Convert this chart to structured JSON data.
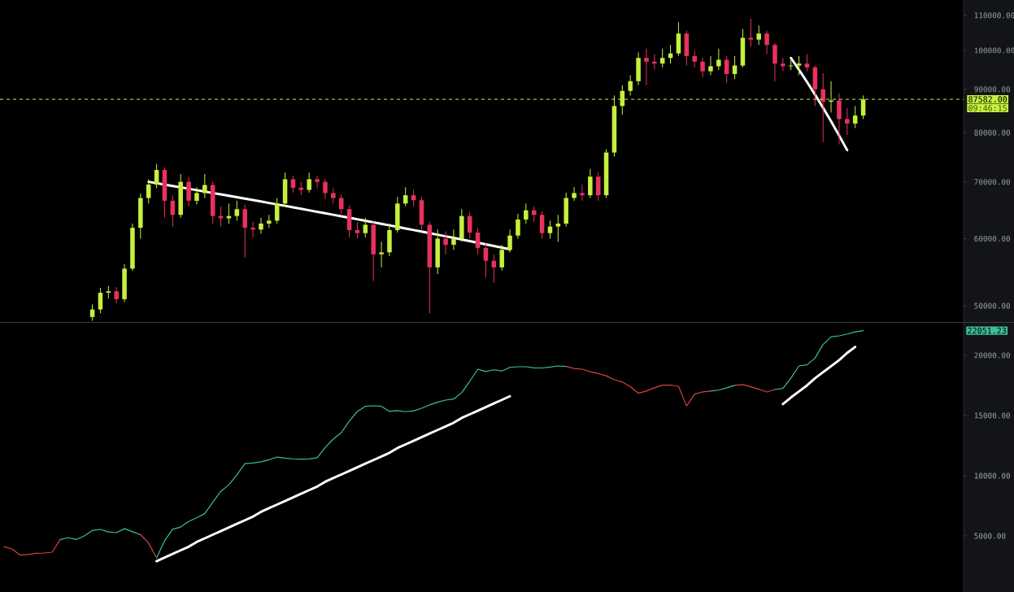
{
  "chart_data": [
    {
      "type": "candlestick",
      "log": "y",
      "tick_labels": "y",
      "categories": [
        null,
        null,
        null,
        null,
        null,
        null,
        null,
        null,
        null,
        null,
        null,
        null,
        null,
        null,
        null,
        null,
        null,
        null,
        null,
        null,
        null,
        null,
        null,
        null,
        null,
        null,
        null,
        null,
        null,
        null,
        null,
        null,
        null,
        null,
        null,
        null,
        null,
        null,
        null,
        null,
        null,
        null,
        null,
        null,
        null,
        null,
        null,
        null,
        null,
        null,
        null,
        null,
        null,
        null,
        null,
        null,
        null,
        null,
        null,
        null,
        null,
        null,
        null,
        null,
        null,
        null,
        null,
        null,
        null,
        null,
        null,
        null,
        null,
        null,
        null,
        null,
        null,
        null,
        null,
        null,
        null,
        null,
        null,
        null,
        null,
        null,
        null,
        null,
        null,
        null,
        null,
        null,
        null,
        null,
        null,
        null,
        null,
        null,
        null,
        null,
        null,
        null,
        null,
        null,
        null,
        null,
        null,
        null,
        null,
        null,
        null,
        null,
        null,
        null,
        null,
        null,
        null,
        null,
        null,
        null
      ],
      "ohlc": [
        null,
        null,
        null,
        null,
        null,
        null,
        null,
        null,
        null,
        null,
        null,
        [
          48500,
          50200,
          48000,
          49500
        ],
        [
          49500,
          52500,
          49000,
          51800
        ],
        [
          51800,
          52800,
          51000,
          52000
        ],
        [
          52000,
          52600,
          50300,
          50900
        ],
        [
          50900,
          56000,
          50500,
          55300
        ],
        [
          55300,
          62500,
          55000,
          61800
        ],
        [
          61800,
          67800,
          60000,
          67000
        ],
        [
          67000,
          70500,
          66000,
          69500
        ],
        [
          69500,
          73500,
          68800,
          72300
        ],
        [
          72300,
          72800,
          63500,
          66500
        ],
        [
          66500,
          67500,
          62000,
          64000
        ],
        [
          64000,
          71500,
          63500,
          70000
        ],
        [
          70000,
          71000,
          65500,
          66500
        ],
        [
          66500,
          69000,
          65800,
          67900
        ],
        [
          67900,
          71500,
          67000,
          69400
        ],
        [
          69400,
          70000,
          62500,
          63800
        ],
        [
          63800,
          65500,
          62000,
          63400
        ],
        [
          63400,
          66000,
          62500,
          63800
        ],
        [
          63800,
          66500,
          63000,
          65000
        ],
        [
          65000,
          65800,
          57000,
          61800
        ],
        [
          61800,
          62800,
          60200,
          61500
        ],
        [
          61500,
          63500,
          60800,
          62500
        ],
        [
          62500,
          64000,
          61800,
          63000
        ],
        [
          63000,
          67000,
          62500,
          66000
        ],
        [
          66000,
          71800,
          65500,
          70500
        ],
        [
          70500,
          71200,
          68000,
          68900
        ],
        [
          68900,
          70000,
          67500,
          68500
        ],
        [
          68500,
          71800,
          68000,
          70500
        ],
        [
          70500,
          71200,
          68800,
          70000
        ],
        [
          70000,
          70600,
          66800,
          67900
        ],
        [
          67900,
          68800,
          66000,
          67000
        ],
        [
          67000,
          67600,
          64200,
          65000
        ],
        [
          65000,
          65600,
          60200,
          61400
        ],
        [
          61400,
          62800,
          60000,
          60900
        ],
        [
          60900,
          63500,
          60200,
          62300
        ],
        [
          62300,
          62800,
          53500,
          57500
        ],
        [
          57500,
          59500,
          55500,
          57800
        ],
        [
          57800,
          62500,
          57200,
          61400
        ],
        [
          61400,
          67200,
          61000,
          66000
        ],
        [
          66000,
          69000,
          65500,
          67500
        ],
        [
          67500,
          68500,
          65500,
          66600
        ],
        [
          66600,
          67200,
          61500,
          62300
        ],
        [
          62300,
          62800,
          49000,
          55500
        ],
        [
          55500,
          61500,
          54500,
          60000
        ],
        [
          60000,
          61200,
          57500,
          59000
        ],
        [
          59000,
          61500,
          58200,
          60000
        ],
        [
          60000,
          65000,
          59500,
          63800
        ],
        [
          63800,
          64500,
          60000,
          61000
        ],
        [
          61000,
          61800,
          57500,
          58500
        ],
        [
          58500,
          59200,
          54000,
          56500
        ],
        [
          56500,
          57500,
          53200,
          55500
        ],
        [
          55500,
          59000,
          55000,
          58200
        ],
        [
          58200,
          61500,
          57800,
          60500
        ],
        [
          60500,
          64200,
          60000,
          63200
        ],
        [
          63200,
          66000,
          62500,
          64800
        ],
        [
          64800,
          65500,
          62800,
          64000
        ],
        [
          64000,
          64600,
          60000,
          60900
        ],
        [
          60900,
          63000,
          60000,
          62000
        ],
        [
          62000,
          64000,
          59500,
          62500
        ],
        [
          62500,
          68000,
          62000,
          67000
        ],
        [
          67000,
          69000,
          66500,
          67900
        ],
        [
          67900,
          69500,
          66500,
          67500
        ],
        [
          67500,
          72500,
          67000,
          71000
        ],
        [
          71000,
          71800,
          66500,
          67500
        ],
        [
          67500,
          76500,
          67000,
          75800
        ],
        [
          75800,
          88500,
          75000,
          86000
        ],
        [
          86000,
          91000,
          84000,
          89600
        ],
        [
          89600,
          93500,
          88500,
          92000
        ],
        [
          92000,
          99500,
          91000,
          98000
        ],
        [
          98000,
          100500,
          91000,
          97000
        ],
        [
          97000,
          99000,
          95000,
          96500
        ],
        [
          96500,
          100500,
          95500,
          98000
        ],
        [
          98000,
          101500,
          96500,
          99200
        ],
        [
          99200,
          108000,
          98500,
          104700
        ],
        [
          104700,
          105500,
          96000,
          98500
        ],
        [
          98500,
          100000,
          95500,
          97000
        ],
        [
          97000,
          98000,
          93000,
          94500
        ],
        [
          94500,
          98500,
          93500,
          95800
        ],
        [
          95800,
          100500,
          94800,
          97500
        ],
        [
          97500,
          98500,
          91500,
          93800
        ],
        [
          93800,
          98500,
          92500,
          96000
        ],
        [
          96000,
          106000,
          95500,
          103500
        ],
        [
          103500,
          109000,
          101000,
          103000
        ],
        [
          103000,
          107000,
          101500,
          104700
        ],
        [
          104700,
          105500,
          99000,
          101500
        ],
        [
          101500,
          102000,
          92000,
          96500
        ],
        [
          96500,
          98000,
          94500,
          95800
        ],
        [
          95800,
          97500,
          94800,
          96000
        ],
        [
          96000,
          98500,
          93500,
          96500
        ],
        [
          96500,
          99000,
          94500,
          95500
        ],
        [
          95500,
          96000,
          86000,
          90000
        ],
        [
          90000,
          94000,
          78000,
          87000
        ],
        [
          87000,
          92000,
          84500,
          87300
        ],
        [
          87300,
          89000,
          77500,
          83000
        ],
        [
          83000,
          85500,
          79500,
          82000
        ],
        [
          82000,
          86000,
          81000,
          83800
        ],
        [
          83800,
          88500,
          83000,
          87582
        ],
        null,
        null,
        null,
        null,
        null,
        null,
        null,
        null,
        null,
        null,
        null,
        null
      ],
      "colors": [
        null,
        null,
        null,
        null,
        null,
        null,
        null,
        null,
        null,
        null,
        null,
        "#c5f03e",
        "#c5f03e",
        "#c5f03e",
        "#e8315b",
        "#c5f03e",
        "#c5f03e",
        "#c5f03e",
        "#c5f03e",
        "#c5f03e",
        "#e8315b",
        "#e8315b",
        "#c5f03e",
        "#e8315b",
        "#c5f03e",
        "#c5f03e",
        "#e8315b",
        "#e8315b",
        "#c5f03e",
        "#c5f03e",
        "#e8315b",
        "#e8315b",
        "#c5f03e",
        "#c5f03e",
        "#c5f03e",
        "#c5f03e",
        "#e8315b",
        "#e8315b",
        "#c5f03e",
        "#e8315b",
        "#e8315b",
        "#e8315b",
        "#e8315b",
        "#e8315b",
        "#e8315b",
        "#c5f03e",
        "#e8315b",
        "#c5f03e",
        "#c5f03e",
        "#c5f03e",
        "#c5f03e",
        "#e8315b",
        "#e8315b",
        "#e8315b",
        "#c5f03e",
        "#e8315b",
        "#c5f03e",
        "#c5f03e",
        "#e8315b",
        "#e8315b",
        "#e8315b",
        "#e8315b",
        "#c5f03e",
        "#c5f03e",
        "#c5f03e",
        "#c5f03e",
        "#e8315b",
        "#e8315b",
        "#c5f03e",
        "#c5f03e",
        "#c5f03e",
        "#c5f03e",
        "#e8315b",
        "#c5f03e",
        "#e8315b",
        "#c5f03e",
        "#c5f03e",
        "#c5f03e",
        "#c5f03e",
        "#c5f03e",
        "#e8315b",
        "#e8315b",
        "#c5f03e",
        "#c5f03e",
        "#c5f03e",
        "#e8315b",
        "#e8315b",
        "#e8315b",
        "#c5f03e",
        "#c5f03e",
        "#e8315b",
        "#c5f03e",
        "#c5f03e",
        "#e8315b",
        "#c5f03e",
        "#e8315b",
        "#e8315b",
        "#e8315b",
        "#c5f03e",
        "#c5f03e",
        "#e8315b",
        "#e8315b",
        "#e8315b",
        "#c5f03e",
        "#e8315b",
        "#e8315b",
        "#c5f03e",
        "#c5f03e",
        null,
        null,
        null,
        null,
        null,
        null,
        null,
        null,
        null,
        null,
        null,
        null
      ],
      "ylim": [
        47850,
        114700
      ],
      "yticks": [
        {
          "value": 50000,
          "label": "50000.00"
        },
        {
          "value": 60000,
          "label": "60000.00"
        },
        {
          "value": 70000,
          "label": "70000.00"
        },
        {
          "value": 80000,
          "label": "80000.00"
        },
        {
          "value": 90000,
          "label": "90000.00"
        },
        {
          "value": 100000,
          "label": "100000.00"
        },
        {
          "value": 110000,
          "label": "110000.00"
        }
      ],
      "ref_lines": [
        {
          "axis": "y",
          "value": 87582,
          "label": "87582.00",
          "color": "#c5f03e",
          "line_style": "dashed"
        }
      ],
      "annotations": [
        "09:46:15"
      ],
      "series": [
        {
          "type": "line",
          "color": "#ffffff",
          "values": [
            null,
            null,
            null,
            null,
            null,
            null,
            null,
            null,
            null,
            null,
            null,
            null,
            null,
            null,
            null,
            null,
            null,
            null,
            70000,
            69740,
            69480,
            69220,
            68960,
            68700,
            68440,
            68180,
            67920,
            67660,
            67400,
            67140,
            66880,
            66620,
            66360,
            66100,
            65840,
            65580,
            65320,
            65060,
            64800,
            64540,
            64280,
            64020,
            63760,
            63500,
            63240,
            62980,
            62720,
            62460,
            62200,
            61940,
            61680,
            61420,
            61160,
            60900,
            60640,
            60380,
            60120,
            59860,
            59600,
            59340,
            59080,
            58820,
            58560,
            58300,
            null,
            null,
            null,
            null,
            null,
            null,
            null,
            null,
            null,
            null,
            null,
            null,
            null,
            null,
            null,
            null,
            null,
            null,
            null,
            null,
            null,
            null,
            null,
            null,
            null,
            null,
            null,
            null,
            null,
            null,
            null,
            null,
            null,
            null,
            null,
            null,
            null,
            null,
            null,
            null,
            null,
            null,
            null,
            null,
            null,
            null,
            null,
            null,
            null,
            null,
            null,
            null,
            null,
            null,
            null,
            null
          ]
        },
        {
          "type": "line",
          "color": "#ffffff",
          "values": [
            null,
            null,
            null,
            null,
            null,
            null,
            null,
            null,
            null,
            null,
            null,
            null,
            null,
            null,
            null,
            null,
            null,
            null,
            null,
            null,
            null,
            null,
            null,
            null,
            null,
            null,
            null,
            null,
            null,
            null,
            null,
            null,
            null,
            null,
            null,
            null,
            null,
            null,
            null,
            null,
            null,
            null,
            null,
            null,
            null,
            null,
            null,
            null,
            null,
            null,
            null,
            null,
            null,
            null,
            null,
            null,
            null,
            null,
            null,
            null,
            null,
            null,
            null,
            null,
            null,
            null,
            null,
            null,
            null,
            null,
            null,
            null,
            null,
            null,
            null,
            null,
            null,
            null,
            null,
            null,
            null,
            null,
            null,
            null,
            null,
            null,
            null,
            null,
            null,
            null,
            null,
            null,
            null,
            null,
            null,
            null,
            null,
            null,
            98000,
            94900,
            91800,
            88700,
            85600,
            82500,
            79400,
            76300,
            null,
            null,
            null,
            null,
            null,
            null,
            null,
            null,
            null,
            null,
            null,
            null,
            null,
            null
          ]
        }
      ]
    },
    {
      "type": "line",
      "tick_labels": "y",
      "categories": [
        null,
        null,
        null,
        null,
        null,
        null,
        null,
        null,
        null,
        null,
        null,
        null,
        null,
        null,
        null,
        null,
        null,
        null,
        null,
        null,
        null,
        null,
        null,
        null,
        null,
        null,
        null,
        null,
        null,
        null,
        null,
        null,
        null,
        null,
        null,
        null,
        null,
        null,
        null,
        null,
        null,
        null,
        null,
        null,
        null,
        null,
        null,
        null,
        null,
        null,
        null,
        null,
        null,
        null,
        null,
        null,
        null,
        null,
        null,
        null,
        null,
        null,
        null,
        null,
        null,
        null,
        null,
        null,
        null,
        null,
        null,
        null,
        null,
        null,
        null,
        null,
        null,
        null,
        null,
        null,
        null,
        null,
        null,
        null,
        null,
        null,
        null,
        null,
        null,
        null,
        null,
        null,
        null,
        null,
        null,
        null,
        null,
        null,
        null,
        null,
        null,
        null,
        null,
        null,
        null,
        null,
        null,
        null,
        null,
        null,
        null,
        null,
        null,
        null,
        null,
        null,
        null,
        null,
        null,
        null
      ],
      "ylim": [
        340,
        22700
      ],
      "yticks": [
        {
          "value": 5000,
          "label": "5000.00"
        },
        {
          "value": 10000,
          "label": "10000.00"
        },
        {
          "value": 15000,
          "label": "15000.00"
        },
        {
          "value": 20000,
          "label": "20000.00"
        }
      ],
      "annotations": [
        "22051.23"
      ],
      "series": [
        {
          "color": "#3cbf9c",
          "values": [
            null,
            null,
            null,
            null,
            null,
            null,
            null,
            4700,
            4850,
            4700,
            5000,
            5450,
            5540,
            5330,
            5270,
            5600,
            5350,
            5100,
            null,
            3180,
            4600,
            5550,
            5740,
            6200,
            6500,
            6850,
            7800,
            8700,
            9250,
            10070,
            11010,
            11060,
            11160,
            11330,
            11550,
            11460,
            11400,
            11370,
            11390,
            11490,
            12350,
            13040,
            13580,
            14530,
            15340,
            15760,
            15810,
            15760,
            15340,
            15410,
            15320,
            15380,
            15610,
            15880,
            16100,
            16280,
            16370,
            16900,
            17850,
            18850,
            18650,
            18800,
            18700,
            19000,
            19050,
            19050,
            18960,
            18950,
            19020,
            19120,
            19080,
            null,
            null,
            null,
            null,
            null,
            null,
            null,
            null,
            null,
            null,
            null,
            null,
            null,
            null,
            null,
            null,
            null,
            17030,
            17110,
            17300,
            17510,
            null,
            null,
            null,
            null,
            17160,
            17250,
            18110,
            19120,
            19210,
            19770,
            20900,
            21540,
            21620,
            21770,
            21950,
            22050,
            null,
            null,
            null,
            null,
            null,
            null,
            null,
            null,
            null,
            null,
            null,
            null
          ]
        },
        {
          "color": "#d9443a",
          "values": [
            4100,
            3920,
            3400,
            3450,
            3550,
            3580,
            3650,
            4700,
            null,
            null,
            null,
            null,
            null,
            null,
            null,
            null,
            null,
            5100,
            4400,
            3180,
            null,
            null,
            null,
            null,
            null,
            null,
            null,
            null,
            null,
            null,
            null,
            null,
            null,
            null,
            null,
            null,
            null,
            null,
            null,
            null,
            null,
            null,
            null,
            null,
            null,
            null,
            null,
            null,
            null,
            null,
            null,
            null,
            null,
            null,
            null,
            null,
            null,
            null,
            null,
            null,
            null,
            null,
            null,
            null,
            null,
            null,
            null,
            null,
            null,
            null,
            19080,
            18910,
            18850,
            18640,
            18480,
            18300,
            17970,
            17790,
            17400,
            16850,
            17030,
            17300,
            17520,
            17530,
            17430,
            15800,
            16780,
            16960,
            17030,
            null,
            null,
            17510,
            17570,
            17390,
            17190,
            16960,
            17160,
            null,
            null,
            null,
            null,
            null,
            null,
            null,
            null,
            null,
            null,
            null,
            null,
            null,
            null,
            null,
            null,
            null,
            null,
            null,
            null,
            null,
            null,
            null
          ]
        },
        {
          "type": "line",
          "color": "#ffffff",
          "values": [
            null,
            null,
            null,
            null,
            null,
            null,
            null,
            null,
            null,
            null,
            null,
            null,
            null,
            null,
            null,
            null,
            null,
            null,
            null,
            2900,
            3200,
            3500,
            3800,
            4100,
            4500,
            4800,
            5100,
            5400,
            5700,
            6000,
            6300,
            6600,
            7000,
            7300,
            7600,
            7900,
            8200,
            8500,
            8800,
            9100,
            9500,
            9800,
            10100,
            10400,
            10700,
            11000,
            11300,
            11600,
            11900,
            12300,
            12600,
            12900,
            13200,
            13500,
            13800,
            14100,
            14400,
            14800,
            15100,
            15400,
            15700,
            16000,
            16300,
            16600,
            null,
            null,
            null,
            null,
            null,
            null,
            null,
            null,
            null,
            null,
            null,
            null,
            null,
            null,
            null,
            null,
            null,
            null,
            null,
            null,
            null,
            null,
            null,
            null,
            null,
            null,
            null,
            null,
            null,
            null,
            null,
            null,
            null,
            null,
            null,
            null,
            null,
            null,
            null,
            null,
            null,
            null,
            null,
            null,
            null,
            null,
            null,
            null,
            null,
            null,
            null,
            null,
            null,
            null,
            null,
            null
          ]
        },
        {
          "type": "line",
          "color": "#ffffff",
          "values": [
            null,
            null,
            null,
            null,
            null,
            null,
            null,
            null,
            null,
            null,
            null,
            null,
            null,
            null,
            null,
            null,
            null,
            null,
            null,
            null,
            null,
            null,
            null,
            null,
            null,
            null,
            null,
            null,
            null,
            null,
            null,
            null,
            null,
            null,
            null,
            null,
            null,
            null,
            null,
            null,
            null,
            null,
            null,
            null,
            null,
            null,
            null,
            null,
            null,
            null,
            null,
            null,
            null,
            null,
            null,
            null,
            null,
            null,
            null,
            null,
            null,
            null,
            null,
            null,
            null,
            null,
            null,
            null,
            null,
            null,
            null,
            null,
            null,
            null,
            null,
            null,
            null,
            null,
            null,
            null,
            null,
            null,
            null,
            null,
            null,
            null,
            null,
            null,
            null,
            null,
            null,
            null,
            null,
            null,
            null,
            null,
            null,
            15950,
            16500,
            17000,
            17500,
            18100,
            18600,
            19100,
            19600,
            20200,
            20700,
            null,
            null,
            null,
            null,
            null,
            null,
            null,
            null,
            null,
            null,
            null,
            null,
            null
          ]
        }
      ]
    }
  ]
}
